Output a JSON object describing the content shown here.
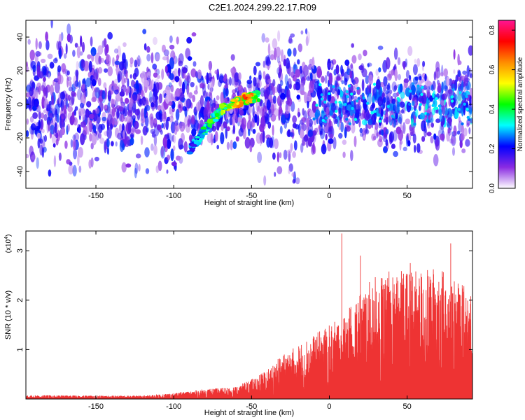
{
  "title": "C2E1.2024.299.22.17.R09",
  "chart_data": [
    {
      "type": "heatmap",
      "xlabel": "Height of straight line (km)",
      "ylabel": "Frequency (Hz)",
      "xlim": [
        -195,
        92
      ],
      "ylim": [
        -50,
        50
      ],
      "xticks": [
        -150,
        -100,
        -50,
        0,
        50
      ],
      "yticks": [
        -40,
        -20,
        0,
        20,
        40
      ],
      "colorbar": {
        "label": "Normalized spectral amplitude",
        "range": [
          0,
          0.85
        ],
        "ticks": [
          0.0,
          0.2,
          0.4,
          0.6,
          0.8
        ],
        "colors": [
          "#ffffff",
          "#8a2be2",
          "#0000ff",
          "#00ffff",
          "#00ff00",
          "#ffff00",
          "#ff8c00",
          "#ff0000",
          "#ff1493"
        ]
      },
      "ridge": {
        "x": [
          -90,
          -85,
          -80,
          -75,
          -70,
          -65,
          -60,
          -55,
          -50,
          -45
        ],
        "y": [
          -27,
          -22,
          -15,
          -9,
          -4,
          -1,
          1,
          3,
          4,
          5
        ],
        "peak_amplitude": [
          0.3,
          0.35,
          0.45,
          0.5,
          0.55,
          0.6,
          0.7,
          0.8,
          0.75,
          0.5
        ]
      },
      "background_amplitude": "0.05-0.25 scattered across full frequency range"
    },
    {
      "type": "line",
      "xlabel": "Height of straight line (km)",
      "ylabel": "SNR (10 * v/v)",
      "y_multiplier": "(x10",
      "y_multiplier_exp": "4",
      "y_multiplier_close": ")",
      "xlim": [
        -195,
        92
      ],
      "ylim": [
        0,
        3.4
      ],
      "xticks": [
        -150,
        -100,
        -50,
        0,
        50
      ],
      "yticks": [
        1,
        2,
        3
      ],
      "color": "#ee3333",
      "envelope": {
        "x": [
          -195,
          -150,
          -120,
          -100,
          -80,
          -60,
          -50,
          -40,
          -30,
          -20,
          -10,
          0,
          10,
          20,
          30,
          40,
          50,
          60,
          70,
          80,
          92
        ],
        "y_max": [
          0.08,
          0.07,
          0.07,
          0.12,
          0.2,
          0.25,
          0.4,
          0.6,
          0.9,
          1.1,
          1.3,
          1.5,
          1.7,
          2.2,
          2.5,
          2.6,
          2.6,
          2.6,
          2.7,
          2.4,
          2.2
        ],
        "spikes": [
          {
            "x": 8,
            "y": 3.35
          },
          {
            "x": 78,
            "y": 3.15
          },
          {
            "x": 20,
            "y": 2.9
          },
          {
            "x": 52,
            "y": 2.75
          }
        ]
      }
    }
  ]
}
